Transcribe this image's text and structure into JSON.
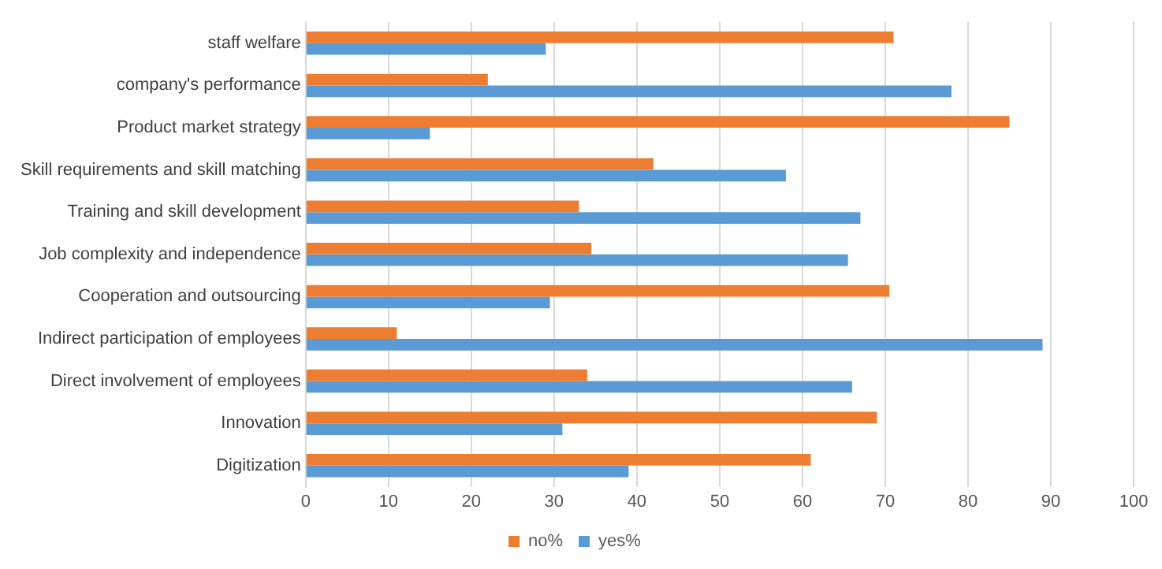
{
  "chart_data": {
    "type": "bar",
    "orientation": "horizontal",
    "categories": [
      "staff welfare",
      "company's performance",
      "Product market strategy",
      "Skill requirements and skill matching",
      "Training and skill development",
      "Job complexity and independence",
      "Cooperation and outsourcing",
      "Indirect participation of employees",
      "Direct involvement of employees",
      "Innovation",
      "Digitization"
    ],
    "series": [
      {
        "name": "no%",
        "color": "#ed7d31",
        "values": [
          71,
          22,
          85,
          42,
          33,
          34.5,
          70.5,
          11,
          34,
          69,
          61
        ]
      },
      {
        "name": "yes%",
        "color": "#5b9bd5",
        "values": [
          29,
          78,
          15,
          58,
          67,
          65.5,
          29.5,
          89,
          66,
          31,
          39
        ]
      }
    ],
    "xlim": [
      0,
      100
    ],
    "xticks": [
      0,
      10,
      20,
      30,
      40,
      50,
      60,
      70,
      80,
      90,
      100
    ],
    "grid": "x",
    "legend": "bottom"
  }
}
